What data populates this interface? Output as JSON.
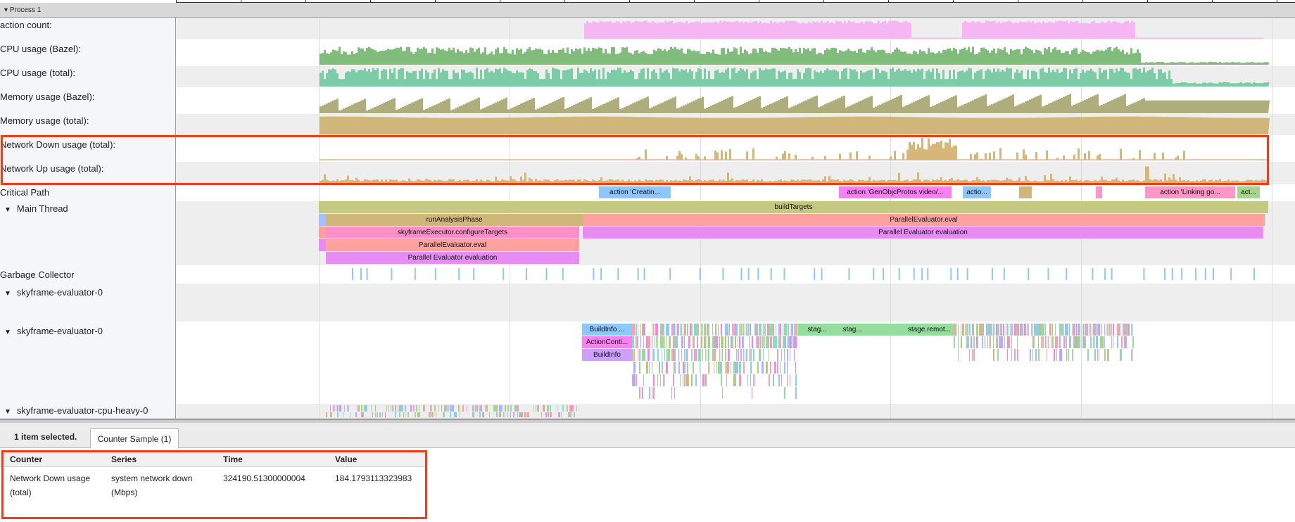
{
  "process": {
    "label": "Process 1"
  },
  "tracks": {
    "counters": [
      {
        "label": "action count:",
        "color": "#f6b6f3"
      },
      {
        "label": "CPU usage (Bazel):",
        "color": "#80bd7c"
      },
      {
        "label": "CPU usage (total):",
        "color": "#7ecba8"
      },
      {
        "label": "Memory usage (Bazel):",
        "color": "#b0ad7d"
      },
      {
        "label": "Memory usage (total):",
        "color": "#d0b679"
      },
      {
        "label": "Network Down usage (total):",
        "color": "#d6b779"
      },
      {
        "label": "Network Up usage (total):",
        "color": "#d6b779"
      }
    ],
    "critical_path": {
      "label": "Critical Path",
      "slices": [
        "action 'Creatin...",
        "action 'GenObjcProtos video/...",
        "actio...",
        "action 'Linking go...",
        "act..."
      ]
    },
    "main_thread": {
      "label": "Main Thread",
      "slices": [
        "buildTargets",
        "runAnalysisPhase",
        "ParallelEvaluator.eval",
        "skyframeExecutor.configureTargets",
        "Parallel Evaluator evaluation",
        "ParallelEvaluator.eval",
        "Parallel Evaluator evaluation"
      ]
    },
    "gc": {
      "label": "Garbage Collector"
    },
    "sky0a": {
      "label": "skyframe-evaluator-0"
    },
    "sky0b": {
      "label": "skyframe-evaluator-0",
      "slices": [
        "BuildInfo ...",
        "ActionConti...",
        "BuildInfo",
        "stag...",
        "stag...",
        "stage.remot..."
      ]
    },
    "cpuheavy": {
      "label": "skyframe-evaluator-cpu-heavy-0"
    }
  },
  "details": {
    "selection": "1 item selected.",
    "tab": "Counter Sample (1)",
    "columns": [
      "Counter",
      "Series",
      "Time",
      "Value"
    ],
    "row": {
      "counter_1": "Network Down usage",
      "counter_2": "(total)",
      "series_1": "system network down",
      "series_2": "(Mbps)",
      "time": "324190.51300000004",
      "value": "184.1793113323983"
    }
  },
  "highlight_color": "#f53a17"
}
